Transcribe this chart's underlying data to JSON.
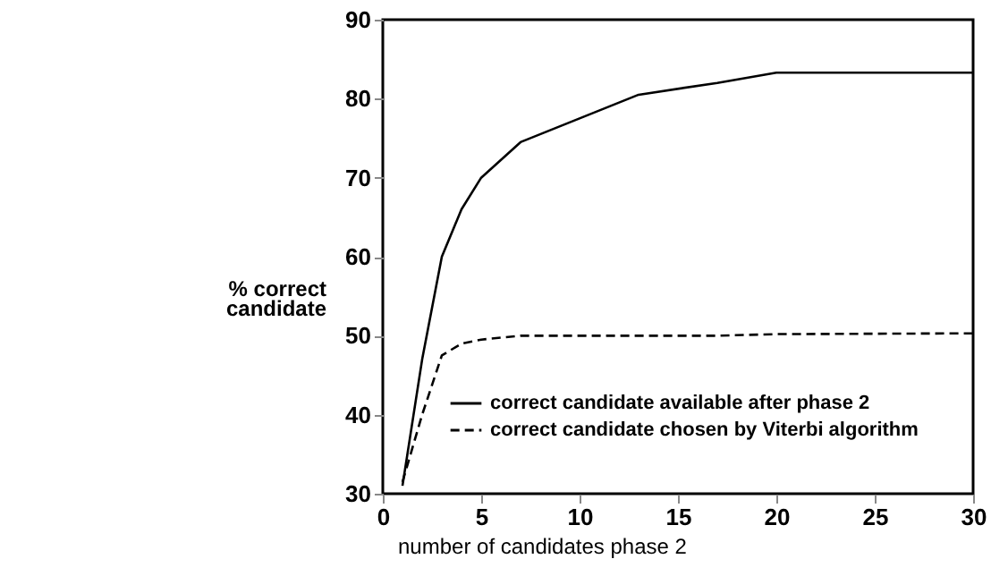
{
  "chart_data": {
    "type": "line",
    "xlabel": "number of candidates phase 2",
    "ylabel": "% correct\ncandidate",
    "xlim": [
      0,
      30
    ],
    "xticks": [
      0,
      5,
      10,
      15,
      20,
      25,
      30
    ],
    "ylim": [
      30,
      90
    ],
    "yticks": [
      30,
      40,
      50,
      60,
      70,
      80,
      90
    ],
    "x": [
      1,
      2,
      3,
      4,
      5,
      7,
      10,
      13,
      17,
      20,
      30
    ],
    "series": [
      {
        "name": "correct candidate available after phase 2",
        "color": "#000000",
        "line_style": "solid",
        "values": [
          31,
          47,
          60,
          66,
          70,
          74.5,
          77.5,
          80.5,
          82,
          83.3,
          83.3
        ]
      },
      {
        "name": "correct candidate chosen by Viterbi algorithm",
        "color": "#000000",
        "line_style": "dashed",
        "values": [
          31.5,
          40,
          47.5,
          49,
          49.5,
          50,
          50,
          50,
          50,
          50.2,
          50.3
        ]
      }
    ],
    "legend": "bottom right",
    "grid": false
  }
}
